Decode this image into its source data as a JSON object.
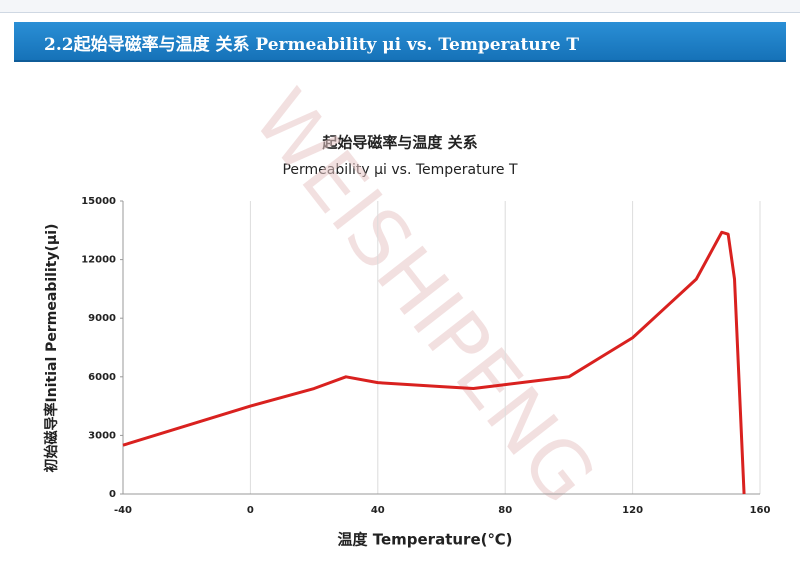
{
  "header": {
    "title": "2.2起始导磁率与温度 关系  Permeability μi vs. Temperature T"
  },
  "chart_data": {
    "type": "line",
    "title": "起始导磁率与温度 关系",
    "subtitle": "Permeability μi vs. Temperature T",
    "x_label": "温度 Temperature(℃)",
    "y_label": "初始磁导率Initial Permeability(μi)",
    "watermark": "WEISHIPENG",
    "x": [
      -40,
      0,
      20,
      30,
      40,
      60,
      70,
      80,
      100,
      110,
      120,
      130,
      140,
      145,
      148,
      150,
      152,
      155
    ],
    "series": [
      {
        "color": "#d9211f",
        "values": [
          2500,
          4500,
          5400,
          6000,
          5700,
          5500,
          5400,
          5600,
          6000,
          7000,
          8000,
          9500,
          11000,
          12500,
          13400,
          13300,
          11000,
          0
        ]
      }
    ],
    "xlim": [
      -40,
      160
    ],
    "xticks": [
      -40,
      0,
      40,
      80,
      120,
      160
    ],
    "ylim": [
      0,
      15000
    ],
    "yticks": [
      0,
      3000,
      6000,
      9000,
      12000,
      15000
    ],
    "grid": "x"
  }
}
